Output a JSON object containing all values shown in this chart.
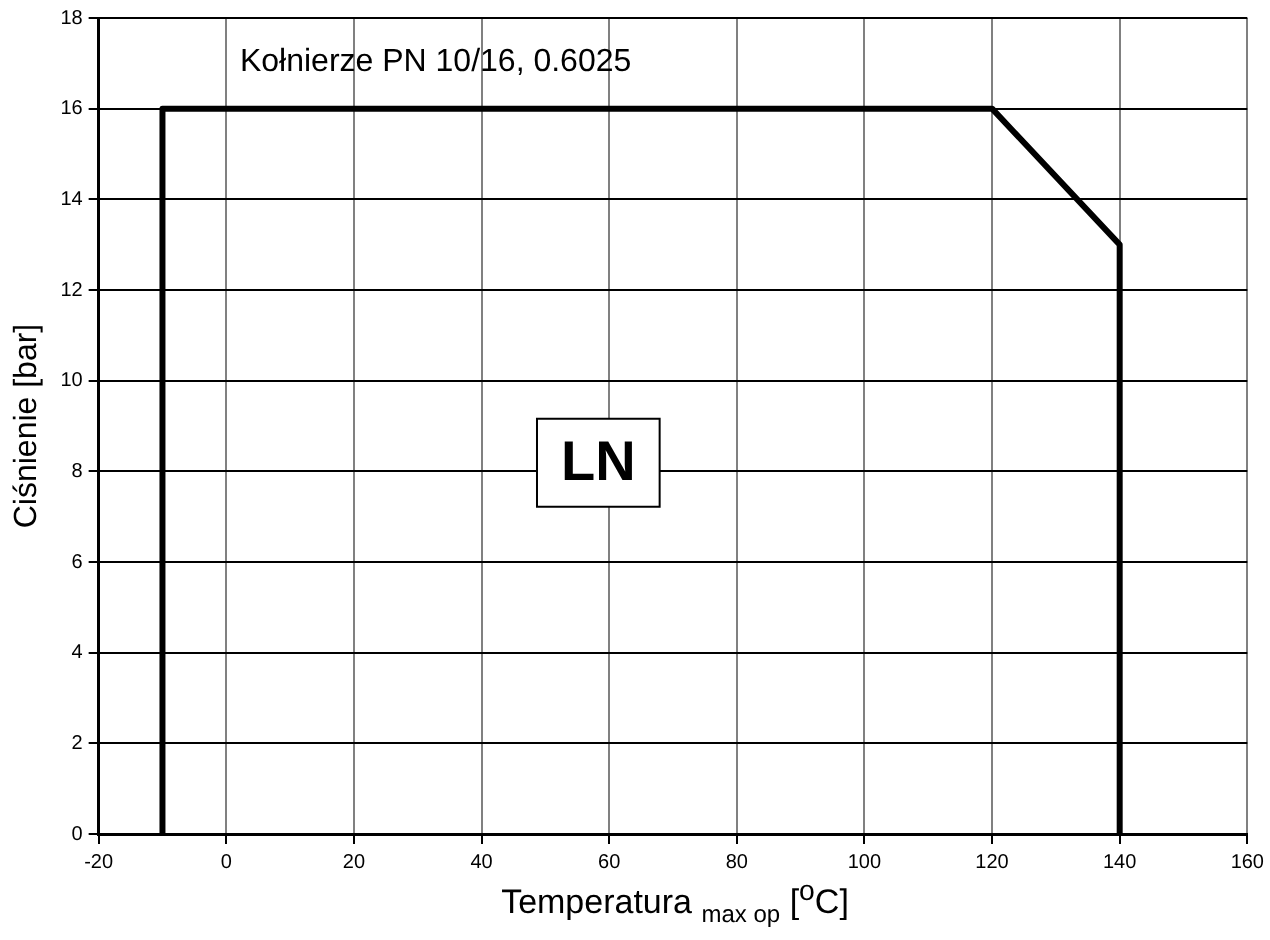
{
  "chart_data": {
    "type": "line",
    "xlabel": "Temperatura $_{max op}$ [$^{o}$C]",
    "ylabel": "Ciśnienie [bar]",
    "annotations": [
      "Kołnierze PN 10/16, 0.6025",
      "LN"
    ],
    "x": [
      -10,
      -10,
      120,
      140,
      140
    ],
    "series": [
      {
        "color": "#000000",
        "values": [
          0,
          16,
          16,
          13,
          0
        ]
      }
    ],
    "xlim": [
      -20,
      160
    ],
    "xticks": [
      -20,
      0,
      20,
      40,
      60,
      80,
      100,
      120,
      140,
      160
    ],
    "ylim": [
      0,
      18
    ],
    "yticks": [
      0,
      2,
      4,
      6,
      8,
      10,
      12,
      14,
      16,
      18
    ],
    "grid": true,
    "marker": "none",
    "line_style": "solid"
  }
}
